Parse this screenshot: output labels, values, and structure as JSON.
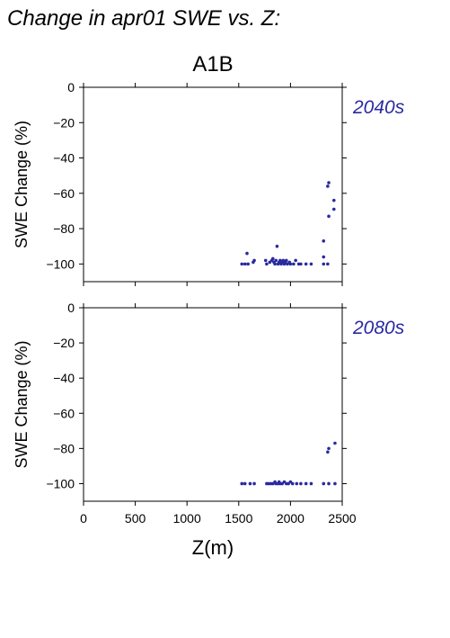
{
  "title": "Change in apr01 SWE vs. Z:",
  "chart_data": {
    "type": "scatter",
    "subtitle": "A1B",
    "xlabel": "Z(m)",
    "ylabel": "SWE Change (%)",
    "xlim": [
      0,
      2500
    ],
    "ylim": [
      -110,
      0
    ],
    "xticks": [
      "0",
      "500",
      "1000",
      "1500",
      "2000",
      "2500"
    ],
    "yticks": [
      "0",
      "−20",
      "−40",
      "−60",
      "−80",
      "−100"
    ],
    "grid": false,
    "point_color": "#2a2aa0",
    "label_color": "#2a2aa0",
    "panels": [
      {
        "label": "2040s",
        "points": [
          [
            1530,
            -100
          ],
          [
            1560,
            -100
          ],
          [
            1590,
            -100
          ],
          [
            1580,
            -94
          ],
          [
            1640,
            -99
          ],
          [
            1650,
            -98
          ],
          [
            1760,
            -98
          ],
          [
            1770,
            -100
          ],
          [
            1800,
            -99
          ],
          [
            1820,
            -98
          ],
          [
            1830,
            -97
          ],
          [
            1840,
            -99
          ],
          [
            1850,
            -100
          ],
          [
            1860,
            -98
          ],
          [
            1870,
            -90
          ],
          [
            1880,
            -100
          ],
          [
            1890,
            -99
          ],
          [
            1900,
            -98
          ],
          [
            1910,
            -100
          ],
          [
            1920,
            -99
          ],
          [
            1930,
            -98
          ],
          [
            1940,
            -100
          ],
          [
            1950,
            -99
          ],
          [
            1960,
            -98
          ],
          [
            1970,
            -100
          ],
          [
            1990,
            -99
          ],
          [
            2000,
            -100
          ],
          [
            2030,
            -100
          ],
          [
            2050,
            -98
          ],
          [
            2080,
            -100
          ],
          [
            2100,
            -100
          ],
          [
            2150,
            -100
          ],
          [
            2200,
            -100
          ],
          [
            2320,
            -87
          ],
          [
            2320,
            -96
          ],
          [
            2320,
            -100
          ],
          [
            2360,
            -100
          ],
          [
            2360,
            -56
          ],
          [
            2370,
            -54
          ],
          [
            2370,
            -73
          ],
          [
            2420,
            -69
          ],
          [
            2420,
            -64
          ]
        ]
      },
      {
        "label": "2080s",
        "points": [
          [
            1530,
            -100
          ],
          [
            1560,
            -100
          ],
          [
            1610,
            -100
          ],
          [
            1650,
            -100
          ],
          [
            1770,
            -100
          ],
          [
            1790,
            -100
          ],
          [
            1810,
            -100
          ],
          [
            1830,
            -100
          ],
          [
            1850,
            -99
          ],
          [
            1860,
            -100
          ],
          [
            1880,
            -100
          ],
          [
            1890,
            -99
          ],
          [
            1900,
            -100
          ],
          [
            1920,
            -100
          ],
          [
            1940,
            -99
          ],
          [
            1960,
            -100
          ],
          [
            1980,
            -100
          ],
          [
            2000,
            -99
          ],
          [
            2020,
            -100
          ],
          [
            2060,
            -100
          ],
          [
            2100,
            -100
          ],
          [
            2150,
            -100
          ],
          [
            2200,
            -100
          ],
          [
            2320,
            -100
          ],
          [
            2370,
            -100
          ],
          [
            2360,
            -82
          ],
          [
            2370,
            -80
          ],
          [
            2430,
            -100
          ],
          [
            2430,
            -77
          ]
        ]
      }
    ]
  }
}
